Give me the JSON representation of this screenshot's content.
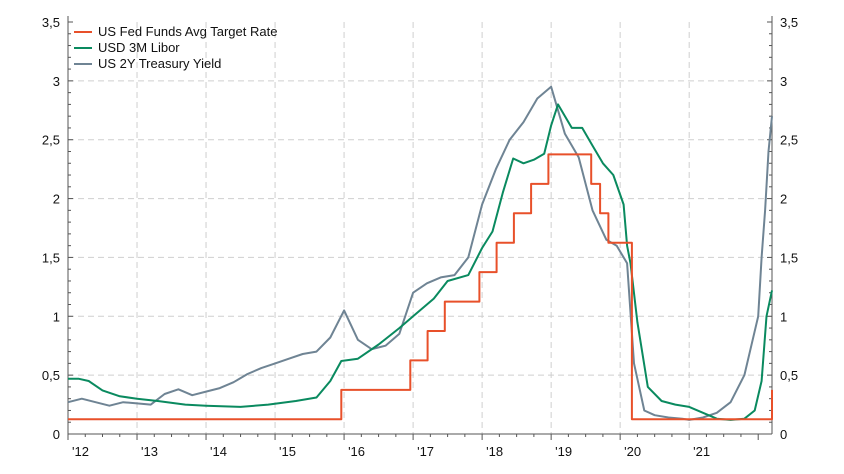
{
  "chart_data": {
    "type": "line",
    "title": "",
    "xlabel": "",
    "ylabel": "",
    "x_range": [
      2012,
      2022.2
    ],
    "ylim": [
      0,
      3.5
    ],
    "y_ticks": [
      0,
      0.5,
      1,
      1.5,
      2,
      2.5,
      3,
      3.5
    ],
    "y_tick_labels": [
      "0",
      "0,5",
      "1",
      "1,5",
      "2",
      "2,5",
      "3",
      "3,5"
    ],
    "x_ticks": [
      2012,
      2013,
      2014,
      2015,
      2016,
      2017,
      2018,
      2019,
      2020,
      2021
    ],
    "x_tick_labels": [
      "'12",
      "'13",
      "'14",
      "'15",
      "'16",
      "'17",
      "'18",
      "'19",
      "'20",
      "'21"
    ],
    "grid": true,
    "legend_position": "top-left",
    "series": [
      {
        "name": "US Fed Funds Avg Target Rate",
        "color": "#e8502a",
        "step": true,
        "x": [
          2012.0,
          2015.96,
          2016.96,
          2017.21,
          2017.46,
          2017.96,
          2018.21,
          2018.46,
          2018.71,
          2018.96,
          2019.58,
          2019.71,
          2019.83,
          2020.17,
          2021.5,
          2022.2
        ],
        "values": [
          0.125,
          0.375,
          0.625,
          0.875,
          1.125,
          1.375,
          1.625,
          1.875,
          2.125,
          2.375,
          2.125,
          1.875,
          1.625,
          0.125,
          0.125,
          0.375
        ]
      },
      {
        "name": "USD 3M Libor",
        "color": "#0a8a5f",
        "step": false,
        "x": [
          2012.0,
          2012.15,
          2012.3,
          2012.5,
          2012.75,
          2013.0,
          2013.3,
          2013.7,
          2014.0,
          2014.5,
          2014.9,
          2015.3,
          2015.6,
          2015.8,
          2015.96,
          2016.2,
          2016.5,
          2016.8,
          2017.0,
          2017.3,
          2017.5,
          2017.8,
          2018.0,
          2018.15,
          2018.3,
          2018.45,
          2018.6,
          2018.75,
          2018.9,
          2019.0,
          2019.1,
          2019.3,
          2019.45,
          2019.6,
          2019.75,
          2019.9,
          2020.05,
          2020.1,
          2020.15,
          2020.25,
          2020.4,
          2020.6,
          2020.8,
          2021.0,
          2021.2,
          2021.4,
          2021.6,
          2021.8,
          2021.95,
          2022.05,
          2022.12,
          2022.2
        ],
        "values": [
          0.47,
          0.47,
          0.45,
          0.37,
          0.32,
          0.3,
          0.28,
          0.25,
          0.24,
          0.23,
          0.25,
          0.28,
          0.31,
          0.45,
          0.62,
          0.64,
          0.76,
          0.9,
          1.0,
          1.15,
          1.3,
          1.35,
          1.58,
          1.72,
          2.05,
          2.34,
          2.3,
          2.33,
          2.38,
          2.62,
          2.8,
          2.6,
          2.6,
          2.45,
          2.3,
          2.2,
          1.95,
          1.6,
          1.45,
          0.95,
          0.4,
          0.28,
          0.25,
          0.23,
          0.18,
          0.13,
          0.12,
          0.13,
          0.2,
          0.45,
          1.0,
          1.22
        ]
      },
      {
        "name": "US 2Y Treasury Yield",
        "color": "#6f8494",
        "step": false,
        "x": [
          2012.0,
          2012.2,
          2012.4,
          2012.6,
          2012.8,
          2013.0,
          2013.2,
          2013.4,
          2013.6,
          2013.8,
          2014.0,
          2014.2,
          2014.4,
          2014.6,
          2014.8,
          2015.0,
          2015.2,
          2015.4,
          2015.6,
          2015.8,
          2016.0,
          2016.2,
          2016.4,
          2016.6,
          2016.8,
          2017.0,
          2017.2,
          2017.4,
          2017.6,
          2017.8,
          2018.0,
          2018.2,
          2018.4,
          2018.6,
          2018.8,
          2019.0,
          2019.2,
          2019.4,
          2019.6,
          2019.8,
          2019.95,
          2020.1,
          2020.2,
          2020.35,
          2020.5,
          2020.7,
          2020.9,
          2021.0,
          2021.2,
          2021.4,
          2021.6,
          2021.8,
          2021.9,
          2022.0,
          2022.05,
          2022.1,
          2022.15,
          2022.2
        ],
        "values": [
          0.27,
          0.3,
          0.27,
          0.24,
          0.27,
          0.26,
          0.25,
          0.34,
          0.38,
          0.33,
          0.36,
          0.39,
          0.44,
          0.51,
          0.56,
          0.6,
          0.64,
          0.68,
          0.7,
          0.82,
          1.05,
          0.8,
          0.72,
          0.75,
          0.85,
          1.2,
          1.28,
          1.33,
          1.35,
          1.5,
          1.95,
          2.25,
          2.5,
          2.65,
          2.85,
          2.95,
          2.55,
          2.35,
          1.9,
          1.65,
          1.6,
          1.45,
          0.6,
          0.2,
          0.16,
          0.14,
          0.13,
          0.12,
          0.14,
          0.18,
          0.27,
          0.5,
          0.75,
          1.0,
          1.5,
          1.9,
          2.4,
          2.7
        ]
      }
    ]
  }
}
